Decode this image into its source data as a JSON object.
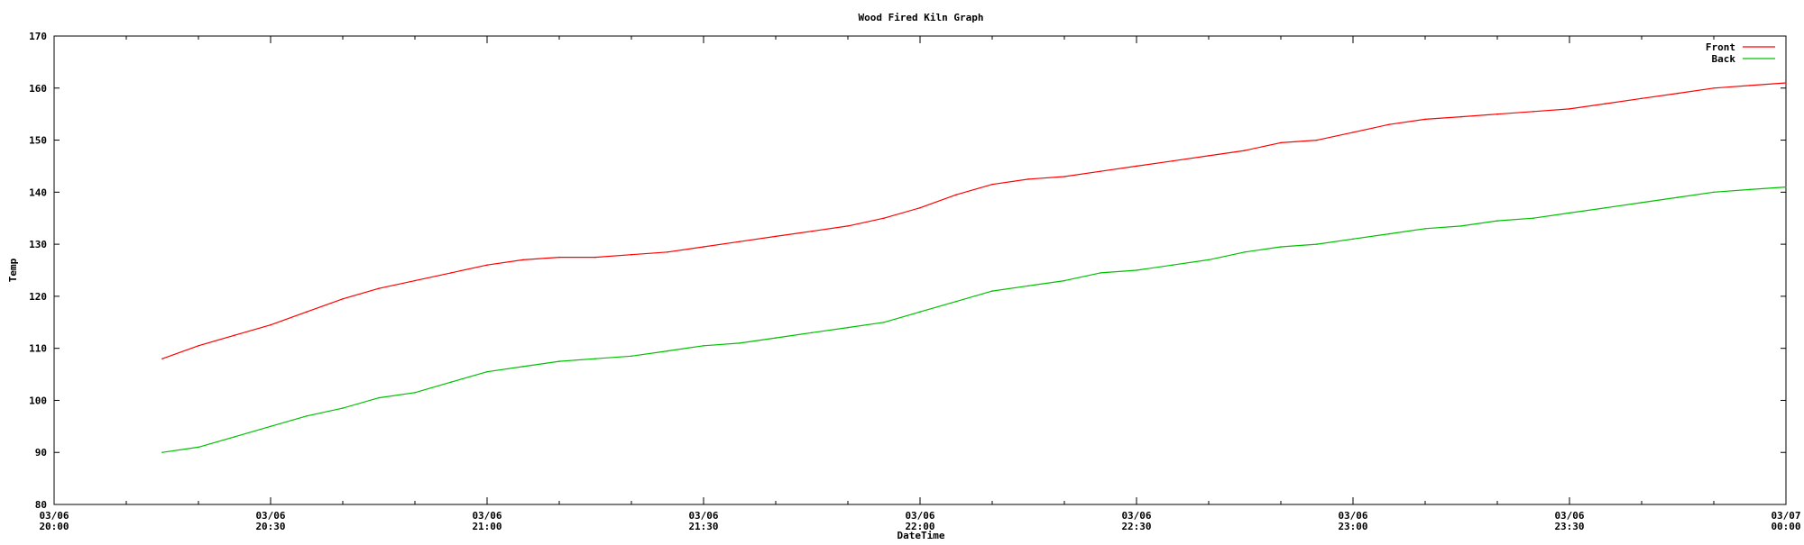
{
  "chart_data": {
    "type": "line",
    "title": "Wood Fired Kiln Graph",
    "xlabel": "DateTime",
    "ylabel": "Temp",
    "ylim": [
      80,
      170
    ],
    "yticks": [
      80,
      90,
      100,
      110,
      120,
      130,
      140,
      150,
      160,
      170
    ],
    "xlim": [
      "03/06 20:00",
      "03/07 00:00"
    ],
    "xticks": [
      {
        "date": "03/06",
        "time": "20:00"
      },
      {
        "date": "03/06",
        "time": "20:30"
      },
      {
        "date": "03/06",
        "time": "21:00"
      },
      {
        "date": "03/06",
        "time": "21:30"
      },
      {
        "date": "03/06",
        "time": "22:00"
      },
      {
        "date": "03/06",
        "time": "22:30"
      },
      {
        "date": "03/06",
        "time": "23:00"
      },
      {
        "date": "03/06",
        "time": "23:30"
      },
      {
        "date": "03/07",
        "time": "00:00"
      }
    ],
    "grid": false,
    "legend_position": "top-right",
    "series": [
      {
        "name": "Front",
        "color": "#ff0000",
        "x": [
          "20:15",
          "20:20",
          "20:25",
          "20:30",
          "20:35",
          "20:40",
          "20:45",
          "20:50",
          "20:55",
          "21:00",
          "21:05",
          "21:10",
          "21:15",
          "21:20",
          "21:25",
          "21:30",
          "21:35",
          "21:40",
          "21:45",
          "21:50",
          "21:55",
          "22:00",
          "22:05",
          "22:10",
          "22:15",
          "22:20",
          "22:25",
          "22:30",
          "22:35",
          "22:40",
          "22:45",
          "22:50",
          "22:55",
          "23:00",
          "23:05",
          "23:10",
          "23:15",
          "23:20",
          "23:25",
          "23:30",
          "23:35",
          "23:40",
          "23:45",
          "23:50",
          "23:55",
          "00:00"
        ],
        "values": [
          108,
          110.5,
          112.5,
          114.5,
          117,
          119.5,
          121.5,
          123,
          124.5,
          126,
          127,
          127.5,
          127.5,
          128,
          128.5,
          129.5,
          130.5,
          131.5,
          132.5,
          133.5,
          135,
          137,
          139.5,
          141.5,
          142.5,
          143,
          144,
          145,
          146,
          147,
          148,
          149.5,
          150,
          151.5,
          153,
          154,
          154.5,
          155,
          155.5,
          156,
          157,
          158,
          159,
          160,
          160.5,
          161
        ]
      },
      {
        "name": "Back",
        "color": "#00c000",
        "x": [
          "20:15",
          "20:20",
          "20:25",
          "20:30",
          "20:35",
          "20:40",
          "20:45",
          "20:50",
          "20:55",
          "21:00",
          "21:05",
          "21:10",
          "21:15",
          "21:20",
          "21:25",
          "21:30",
          "21:35",
          "21:40",
          "21:45",
          "21:50",
          "21:55",
          "22:00",
          "22:05",
          "22:10",
          "22:15",
          "22:20",
          "22:25",
          "22:30",
          "22:35",
          "22:40",
          "22:45",
          "22:50",
          "22:55",
          "23:00",
          "23:05",
          "23:10",
          "23:15",
          "23:20",
          "23:25",
          "23:30",
          "23:35",
          "23:40",
          "23:45",
          "23:50",
          "23:55",
          "00:00"
        ],
        "values": [
          90,
          91,
          93,
          95,
          97,
          98.5,
          100.5,
          101.5,
          103.5,
          105.5,
          106.5,
          107.5,
          108,
          108.5,
          109.5,
          110.5,
          111,
          112,
          113,
          114,
          115,
          117,
          119,
          121,
          122,
          123,
          124.5,
          125,
          126,
          127,
          128.5,
          129.5,
          130,
          131,
          132,
          133,
          133.5,
          134.5,
          135,
          136,
          137,
          138,
          139,
          140,
          140.5,
          141
        ]
      }
    ]
  }
}
